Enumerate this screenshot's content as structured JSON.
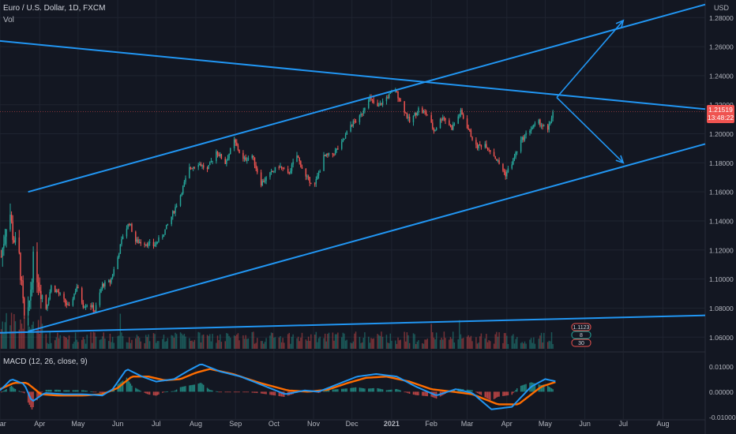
{
  "header": {
    "symbol": "Euro / U.S. Dollar, 1D, FXCM",
    "volume_label": "Vol",
    "currency": "USD"
  },
  "price_label": {
    "price": "1.21519",
    "countdown": "13:48:22"
  },
  "macd_label": "MACD (12, 26, close, 9)",
  "volume_badges": [
    "1.1123",
    "8",
    "30"
  ],
  "colors": {
    "background": "#131722",
    "grid": "#1f2430",
    "bull": "#26a69a",
    "bear": "#ef5350",
    "trendline": "#2196f3",
    "macd_line": "#2196f3",
    "signal_line": "#ff6d00",
    "price_label_bg": "#ef5350"
  },
  "chart_data": [
    {
      "type": "candlestick",
      "title": "Euro / U.S. Dollar, 1D, FXCM",
      "ylabel": "USD",
      "yticks": [
        "1.28000",
        "1.26000",
        "1.24000",
        "1.22000",
        "1.20000",
        "1.18000",
        "1.16000",
        "1.14000",
        "1.12000",
        "1.10000",
        "1.08000",
        "1.06000"
      ],
      "ylim": [
        1.052,
        1.291
      ],
      "xticks": [
        "Mar",
        "Apr",
        "May",
        "Jun",
        "Jul",
        "Aug",
        "Sep",
        "Oct",
        "Nov",
        "Dec",
        "2021",
        "Feb",
        "Mar",
        "Apr",
        "May",
        "Jun",
        "Jul",
        "Aug"
      ],
      "xlim": [
        "2020-03-01",
        "2021-09-03"
      ],
      "path": [
        [
          "2020-03-01",
          1.11
        ],
        [
          "2020-03-06",
          1.138
        ],
        [
          "2020-03-09",
          1.145
        ],
        [
          "2020-03-11",
          1.13
        ],
        [
          "2020-03-16",
          1.115
        ],
        [
          "2020-03-20",
          1.072
        ],
        [
          "2020-03-23",
          1.075
        ],
        [
          "2020-03-27",
          1.113
        ],
        [
          "2020-04-01",
          1.095
        ],
        [
          "2020-04-06",
          1.08
        ],
        [
          "2020-04-10",
          1.095
        ],
        [
          "2020-04-15",
          1.091
        ],
        [
          "2020-04-20",
          1.085
        ],
        [
          "2020-04-24",
          1.08
        ],
        [
          "2020-04-30",
          1.095
        ],
        [
          "2020-05-05",
          1.082
        ],
        [
          "2020-05-10",
          1.083
        ],
        [
          "2020-05-14",
          1.078
        ],
        [
          "2020-05-20",
          1.096
        ],
        [
          "2020-05-26",
          1.098
        ],
        [
          "2020-06-01",
          1.115
        ],
        [
          "2020-06-05",
          1.13
        ],
        [
          "2020-06-10",
          1.139
        ],
        [
          "2020-06-15",
          1.126
        ],
        [
          "2020-06-22",
          1.125
        ],
        [
          "2020-06-29",
          1.123
        ],
        [
          "2020-07-06",
          1.13
        ],
        [
          "2020-07-13",
          1.143
        ],
        [
          "2020-07-20",
          1.158
        ],
        [
          "2020-07-27",
          1.176
        ],
        [
          "2020-08-03",
          1.18
        ],
        [
          "2020-08-10",
          1.175
        ],
        [
          "2020-08-17",
          1.188
        ],
        [
          "2020-08-24",
          1.18
        ],
        [
          "2020-08-31",
          1.195
        ],
        [
          "2020-09-07",
          1.182
        ],
        [
          "2020-09-14",
          1.185
        ],
        [
          "2020-09-21",
          1.166
        ],
        [
          "2020-09-28",
          1.172
        ],
        [
          "2020-10-05",
          1.178
        ],
        [
          "2020-10-12",
          1.172
        ],
        [
          "2020-10-19",
          1.185
        ],
        [
          "2020-10-26",
          1.17
        ],
        [
          "2020-11-02",
          1.165
        ],
        [
          "2020-11-09",
          1.184
        ],
        [
          "2020-11-16",
          1.186
        ],
        [
          "2020-11-23",
          1.193
        ],
        [
          "2020-11-30",
          1.206
        ],
        [
          "2020-12-07",
          1.211
        ],
        [
          "2020-12-14",
          1.225
        ],
        [
          "2020-12-21",
          1.218
        ],
        [
          "2020-12-28",
          1.225
        ],
        [
          "2021-01-04",
          1.23
        ],
        [
          "2021-01-08",
          1.222
        ],
        [
          "2021-01-15",
          1.208
        ],
        [
          "2021-01-22",
          1.217
        ],
        [
          "2021-01-29",
          1.213
        ],
        [
          "2021-02-03",
          1.202
        ],
        [
          "2021-02-10",
          1.212
        ],
        [
          "2021-02-17",
          1.204
        ],
        [
          "2021-02-24",
          1.215
        ],
        [
          "2021-03-01",
          1.205
        ],
        [
          "2021-03-08",
          1.191
        ],
        [
          "2021-03-15",
          1.193
        ],
        [
          "2021-03-22",
          1.185
        ],
        [
          "2021-03-31",
          1.172
        ],
        [
          "2021-04-05",
          1.18
        ],
        [
          "2021-04-12",
          1.195
        ],
        [
          "2021-04-19",
          1.203
        ],
        [
          "2021-04-26",
          1.208
        ],
        [
          "2021-05-03",
          1.202
        ],
        [
          "2021-05-07",
          1.215
        ]
      ],
      "last_price": 1.21519,
      "trendlines": [
        {
          "name": "descending-resistance",
          "from": [
            "2020-02-29",
            1.264
          ],
          "to": [
            "2021-09-03",
            1.217
          ]
        },
        {
          "name": "channel-upper",
          "from": [
            "2020-03-23",
            1.16
          ],
          "to": [
            "2021-09-03",
            1.289
          ]
        },
        {
          "name": "channel-lower",
          "from": [
            "2020-03-23",
            1.064
          ],
          "to": [
            "2021-09-03",
            1.193
          ]
        },
        {
          "name": "volume-baseline",
          "from": [
            "2020-03-01",
            1.063
          ],
          "to": [
            "2021-09-03",
            1.075
          ]
        }
      ],
      "arrows": [
        {
          "name": "up-scenario-arrow",
          "from": [
            "2021-05-10",
            1.225
          ],
          "to": [
            "2021-07-01",
            1.278
          ]
        },
        {
          "name": "down-scenario-arrow",
          "from": [
            "2021-05-10",
            1.225
          ],
          "to": [
            "2021-07-01",
            1.18
          ]
        }
      ],
      "volume_panel": {
        "label": "Vol"
      }
    },
    {
      "type": "line",
      "title": "MACD (12, 26, close, 9)",
      "yticks": [
        "0.01000",
        "0.00000",
        "-0.01000"
      ],
      "ylim": [
        -0.0105,
        0.0145
      ],
      "series": [
        {
          "name": "MACD",
          "color": "#2196f3",
          "points": [
            [
              "2020-03-01",
              0.0005
            ],
            [
              "2020-03-10",
              0.005
            ],
            [
              "2020-03-20",
              0.003
            ],
            [
              "2020-03-26",
              -0.004
            ],
            [
              "2020-04-05",
              -0.0005
            ],
            [
              "2020-04-20",
              -0.001
            ],
            [
              "2020-05-05",
              -0.001
            ],
            [
              "2020-05-20",
              -0.0015
            ],
            [
              "2020-05-28",
              0.001
            ],
            [
              "2020-06-08",
              0.009
            ],
            [
              "2020-06-20",
              0.006
            ],
            [
              "2020-07-01",
              0.004
            ],
            [
              "2020-07-15",
              0.005
            ],
            [
              "2020-07-25",
              0.008
            ],
            [
              "2020-08-05",
              0.011
            ],
            [
              "2020-08-20",
              0.008
            ],
            [
              "2020-09-05",
              0.006
            ],
            [
              "2020-09-25",
              0.002
            ],
            [
              "2020-10-10",
              -0.001
            ],
            [
              "2020-10-25",
              0.0005
            ],
            [
              "2020-11-05",
              0.0
            ],
            [
              "2020-11-20",
              0.003
            ],
            [
              "2020-12-05",
              0.006
            ],
            [
              "2020-12-20",
              0.007
            ],
            [
              "2021-01-05",
              0.006
            ],
            [
              "2021-01-20",
              0.002
            ],
            [
              "2021-02-05",
              -0.0015
            ],
            [
              "2021-02-20",
              0.001
            ],
            [
              "2021-03-05",
              -0.0005
            ],
            [
              "2021-03-20",
              -0.007
            ],
            [
              "2021-04-05",
              -0.006
            ],
            [
              "2021-04-20",
              0.002
            ],
            [
              "2021-05-01",
              0.005
            ],
            [
              "2021-05-10",
              0.004
            ]
          ]
        },
        {
          "name": "Signal",
          "color": "#ff6d00",
          "points": [
            [
              "2020-03-01",
              0.001
            ],
            [
              "2020-03-12",
              0.0035
            ],
            [
              "2020-03-22",
              0.0035
            ],
            [
              "2020-04-02",
              -0.001
            ],
            [
              "2020-04-15",
              -0.0015
            ],
            [
              "2020-05-05",
              -0.0015
            ],
            [
              "2020-05-20",
              -0.001
            ],
            [
              "2020-06-01",
              0.0015
            ],
            [
              "2020-06-12",
              0.006
            ],
            [
              "2020-06-25",
              0.006
            ],
            [
              "2020-07-08",
              0.0045
            ],
            [
              "2020-07-20",
              0.005
            ],
            [
              "2020-08-01",
              0.0075
            ],
            [
              "2020-08-12",
              0.009
            ],
            [
              "2020-08-30",
              0.007
            ],
            [
              "2020-09-20",
              0.0035
            ],
            [
              "2020-10-12",
              0.0005
            ],
            [
              "2020-10-28",
              0.0
            ],
            [
              "2020-11-12",
              0.0008
            ],
            [
              "2020-11-28",
              0.0035
            ],
            [
              "2020-12-12",
              0.0055
            ],
            [
              "2020-12-28",
              0.006
            ],
            [
              "2021-01-15",
              0.004
            ],
            [
              "2021-02-01",
              0.001
            ],
            [
              "2021-02-18",
              0.0
            ],
            [
              "2021-03-05",
              -0.001
            ],
            [
              "2021-03-25",
              -0.005
            ],
            [
              "2021-04-10",
              -0.005
            ],
            [
              "2021-04-28",
              0.002
            ],
            [
              "2021-05-10",
              0.004
            ]
          ]
        }
      ],
      "histogram": "MACD minus Signal"
    }
  ]
}
